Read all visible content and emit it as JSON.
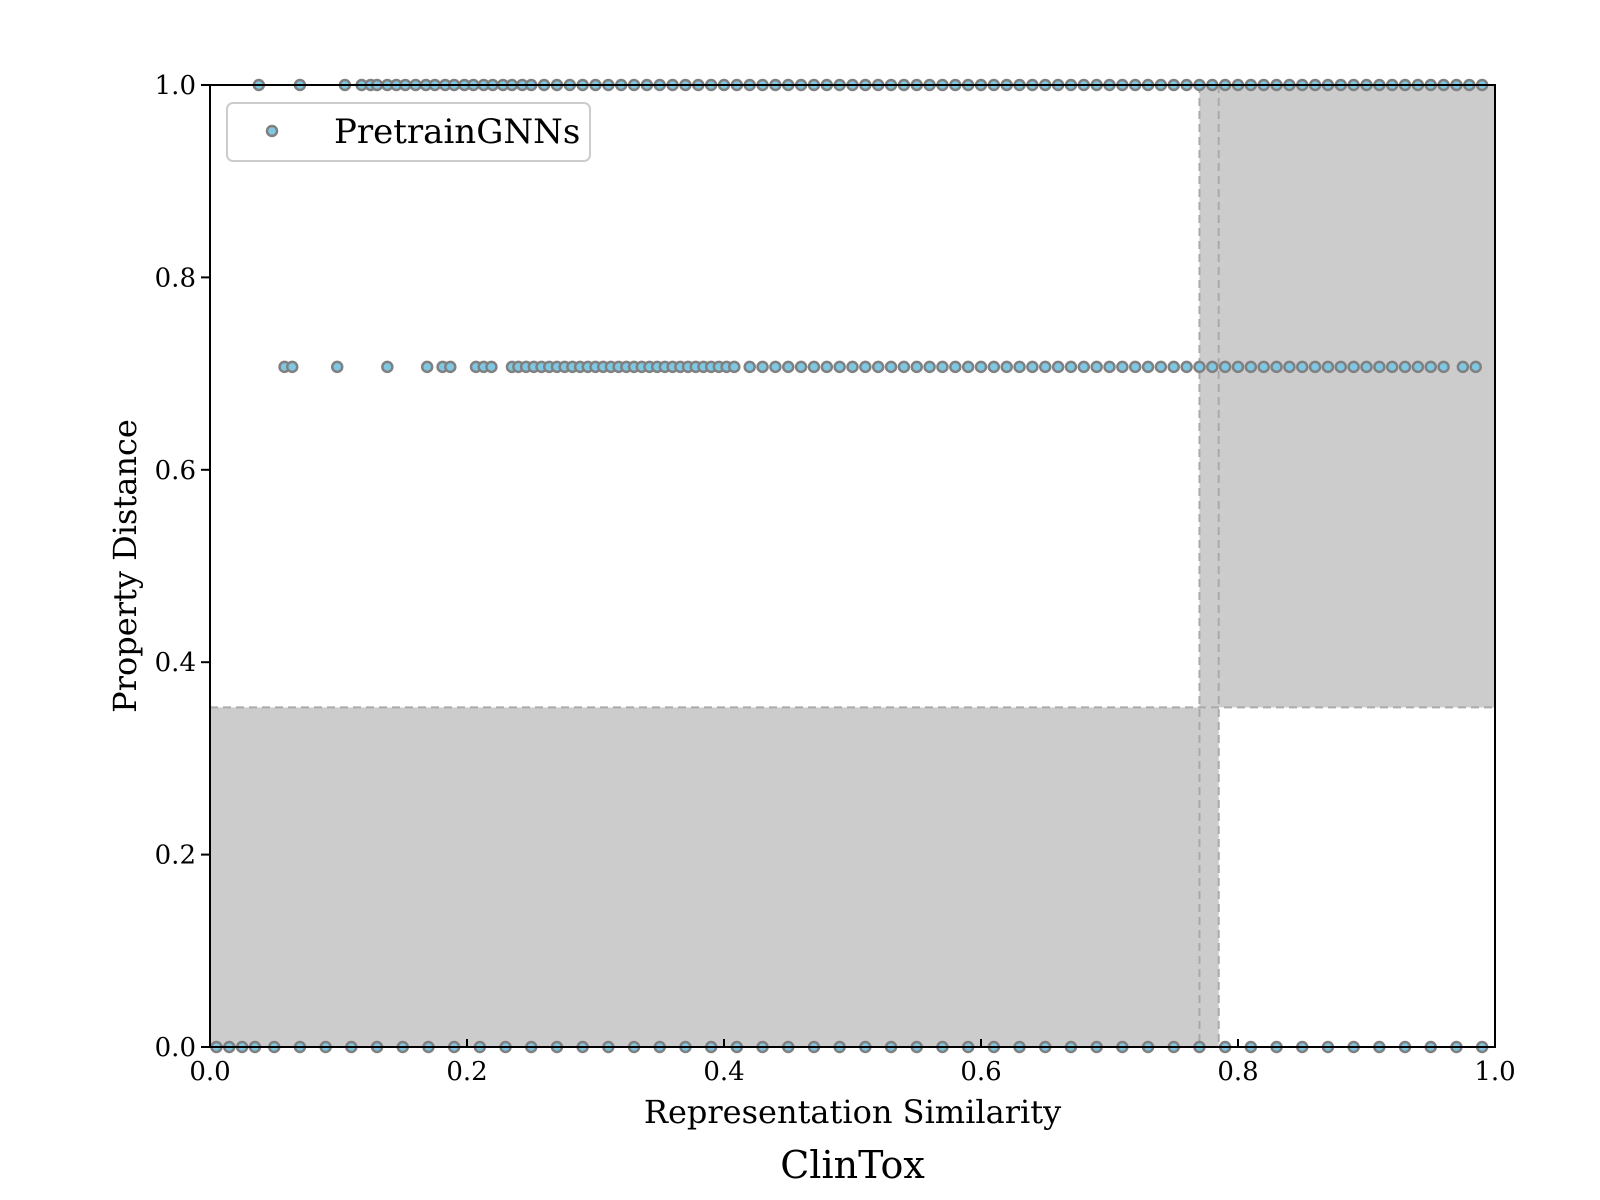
{
  "chart_data": {
    "type": "scatter",
    "caption": "ClinTox",
    "xlabel": "Representation Similarity",
    "ylabel": "Property Distance",
    "xlim": [
      0.0,
      1.0
    ],
    "ylim": [
      0.0,
      1.0
    ],
    "xticks": [
      "0.0",
      "0.2",
      "0.4",
      "0.6",
      "0.8",
      "1.0"
    ],
    "yticks": [
      "0.0",
      "0.2",
      "0.4",
      "0.6",
      "0.8",
      "1.0"
    ],
    "grid": false,
    "legend_position": "top-left",
    "colors": {
      "marker_fill": "#7ec8e3",
      "marker_edge": "#808080",
      "shade": "#cccccc",
      "dashed_line": "#aaaaaa"
    },
    "thresholds": {
      "x_lines": [
        0.77,
        0.785
      ],
      "y_line": 0.353
    },
    "shaded_regions": [
      {
        "x": [
          0.0,
          0.785
        ],
        "y": [
          0.0,
          0.353
        ]
      },
      {
        "x": [
          0.77,
          1.0
        ],
        "y": [
          0.353,
          1.0
        ]
      }
    ],
    "series": [
      {
        "name": "PretrainGNNs",
        "bands": [
          {
            "y": 1.0,
            "x": [
              0.038,
              0.07,
              0.105,
              0.118,
              0.125,
              0.13,
              0.138,
              0.145,
              0.152,
              0.16,
              0.168,
              0.175,
              0.183,
              0.19,
              0.198,
              0.205,
              0.213,
              0.22,
              0.228,
              0.235,
              0.243,
              0.25,
              0.26,
              0.27,
              0.28,
              0.29,
              0.3,
              0.31,
              0.32,
              0.33,
              0.34,
              0.35,
              0.36,
              0.37,
              0.38,
              0.39,
              0.4,
              0.41,
              0.42,
              0.43,
              0.44,
              0.45,
              0.46,
              0.47,
              0.48,
              0.49,
              0.5,
              0.51,
              0.52,
              0.53,
              0.54,
              0.55,
              0.56,
              0.57,
              0.58,
              0.59,
              0.6,
              0.61,
              0.62,
              0.63,
              0.64,
              0.65,
              0.66,
              0.67,
              0.68,
              0.69,
              0.7,
              0.71,
              0.72,
              0.73,
              0.74,
              0.75,
              0.76,
              0.77,
              0.78,
              0.79,
              0.8,
              0.81,
              0.82,
              0.83,
              0.84,
              0.85,
              0.86,
              0.87,
              0.88,
              0.89,
              0.9,
              0.91,
              0.92,
              0.93,
              0.94,
              0.95,
              0.96,
              0.97,
              0.98,
              0.99
            ]
          },
          {
            "y": 0.707,
            "x": [
              0.058,
              0.064,
              0.099,
              0.138,
              0.169,
              0.181,
              0.187,
              0.207,
              0.213,
              0.219,
              0.235,
              0.24,
              0.246,
              0.252,
              0.258,
              0.264,
              0.27,
              0.276,
              0.282,
              0.288,
              0.294,
              0.3,
              0.306,
              0.312,
              0.318,
              0.324,
              0.33,
              0.336,
              0.342,
              0.348,
              0.354,
              0.36,
              0.366,
              0.372,
              0.378,
              0.384,
              0.39,
              0.396,
              0.402,
              0.408,
              0.42,
              0.43,
              0.44,
              0.45,
              0.46,
              0.47,
              0.48,
              0.49,
              0.5,
              0.51,
              0.52,
              0.53,
              0.54,
              0.55,
              0.56,
              0.57,
              0.58,
              0.59,
              0.6,
              0.61,
              0.62,
              0.63,
              0.64,
              0.65,
              0.66,
              0.67,
              0.68,
              0.69,
              0.7,
              0.71,
              0.72,
              0.73,
              0.74,
              0.75,
              0.76,
              0.77,
              0.78,
              0.79,
              0.8,
              0.81,
              0.82,
              0.83,
              0.84,
              0.85,
              0.86,
              0.87,
              0.88,
              0.89,
              0.9,
              0.91,
              0.92,
              0.93,
              0.94,
              0.95,
              0.96,
              0.975,
              0.985
            ]
          },
          {
            "y": 0.0,
            "x": [
              0.005,
              0.015,
              0.025,
              0.035,
              0.05,
              0.07,
              0.09,
              0.11,
              0.13,
              0.15,
              0.17,
              0.19,
              0.21,
              0.23,
              0.25,
              0.27,
              0.29,
              0.31,
              0.33,
              0.35,
              0.37,
              0.39,
              0.41,
              0.43,
              0.45,
              0.47,
              0.49,
              0.51,
              0.53,
              0.55,
              0.57,
              0.59,
              0.61,
              0.63,
              0.65,
              0.67,
              0.69,
              0.71,
              0.73,
              0.75,
              0.77,
              0.79,
              0.81,
              0.83,
              0.85,
              0.87,
              0.89,
              0.91,
              0.93,
              0.95,
              0.97,
              0.99
            ]
          }
        ]
      }
    ]
  }
}
